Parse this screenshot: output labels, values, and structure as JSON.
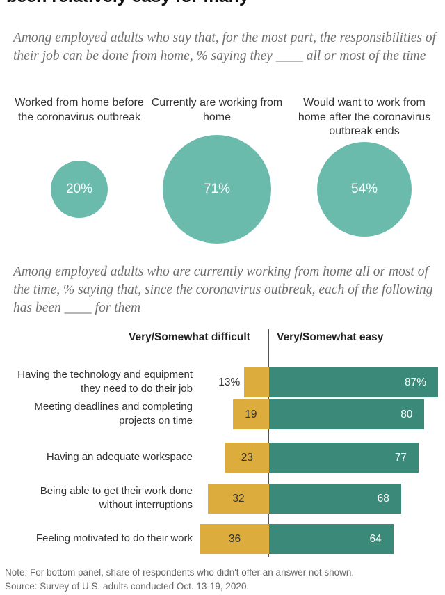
{
  "header": {
    "title": "been relatively easy for many",
    "subtitle_top": "Among employed adults who say that, for the most part, the responsibilities of their job can be done from home, % saying they ____ all or most of the time",
    "subtitle_mid": "Among employed adults who are currently working from home all or most of the time, % saying that, since the coronavirus outbreak, each of the following has been ____ for them"
  },
  "chart_data": [
    {
      "type": "bubble",
      "categories": [
        "Worked from home before the coronavirus outbreak",
        "Currently are working from home",
        "Would want to work from home after the coronavirus outbreak ends"
      ],
      "values": [
        20,
        71,
        54
      ],
      "value_labels": [
        "20%",
        "71%",
        "54%"
      ],
      "color": "#6bbbad"
    },
    {
      "type": "bar",
      "orientation": "horizontal-diverging",
      "series": [
        {
          "name": "Very/Somewhat difficult",
          "color": "#dcad3d",
          "values": [
            13,
            19,
            23,
            32,
            36
          ],
          "labels": [
            "13%",
            "19",
            "23",
            "32",
            "36"
          ]
        },
        {
          "name": "Very/Somewhat easy",
          "color": "#3b8a79",
          "values": [
            87,
            80,
            77,
            68,
            64
          ],
          "labels": [
            "87%",
            "80",
            "77",
            "68",
            "64"
          ]
        }
      ],
      "categories": [
        "Having the technology and equipment they need to do their job",
        "Meeting deadlines and completing projects on time",
        "Having an adequate workspace",
        "Being able to get their work done without interruptions",
        "Feeling motivated to do their work"
      ],
      "xlim": [
        0,
        100
      ]
    }
  ],
  "footer": {
    "note": "Note: For bottom panel, share of respondents who didn't offer an answer not shown.",
    "source": "Source: Survey of U.S. adults conducted Oct. 13-19, 2020."
  }
}
